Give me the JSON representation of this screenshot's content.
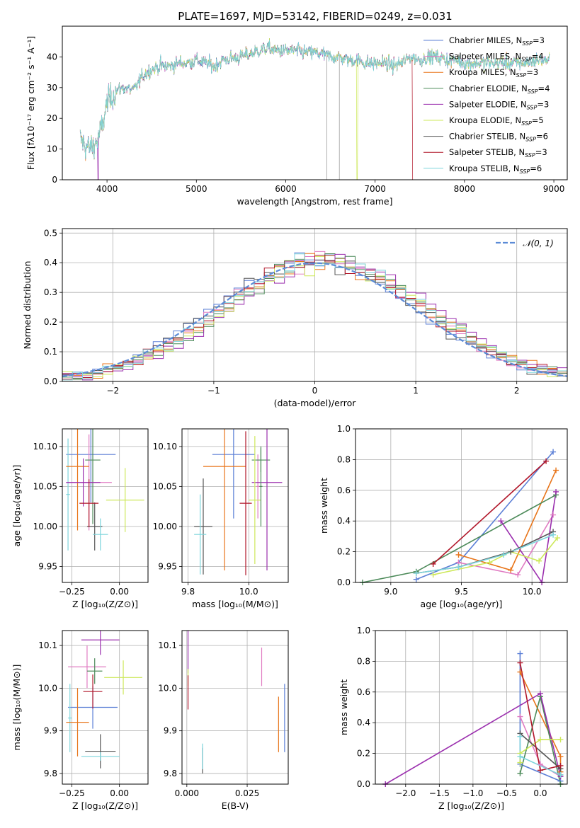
{
  "figure": {
    "title": "PLATE=1697, MJD=53142, FIBERID=0249, z=0.031"
  },
  "colors": {
    "Chabrier MILES": "#5b7fd6",
    "Salpeter MILES": "#e07bc2",
    "Kroupa MILES": "#e8751a",
    "Chabrier ELODIE": "#4c8a59",
    "Salpeter ELODIE": "#9b2fae",
    "Kroupa ELODIE": "#cde85a",
    "Chabrier STELIB": "#555555",
    "Salpeter STELIB": "#b2182b",
    "Kroupa STELIB": "#7dd5dc"
  },
  "chart_data": [
    {
      "id": "spectrum",
      "type": "line",
      "xlabel": "wavelength [Angstrom, rest frame]",
      "ylabel": "Flux [fλ10⁻¹⁷ erg cm⁻² s⁻¹ A⁻¹]",
      "xlim": [
        3500,
        9150
      ],
      "ylim": [
        0,
        50
      ],
      "xticks": [
        4000,
        5000,
        6000,
        7000,
        8000,
        9000
      ],
      "yticks": [
        0,
        10,
        20,
        30,
        40
      ],
      "legend_position": "upper-right",
      "legend": [
        {
          "model": "Chabrier MILES",
          "label": "Chabrier MILES, N",
          "sub": "SSP",
          "suffix": "=3"
        },
        {
          "model": "Salpeter MILES",
          "label": "Salpeter MILES, N",
          "sub": "SSP",
          "suffix": "=4"
        },
        {
          "model": "Kroupa MILES",
          "label": "Kroupa MILES, N",
          "sub": "SSP",
          "suffix": "=3"
        },
        {
          "model": "Chabrier ELODIE",
          "label": "Chabrier ELODIE, N",
          "sub": "SSP",
          "suffix": "=4"
        },
        {
          "model": "Salpeter ELODIE",
          "label": "Salpeter ELODIE, N",
          "sub": "SSP",
          "suffix": "=3"
        },
        {
          "model": "Kroupa ELODIE",
          "label": "Kroupa ELODIE, N",
          "sub": "SSP",
          "suffix": "=5"
        },
        {
          "model": "Chabrier STELIB",
          "label": "Chabrier STELIB, N",
          "sub": "SSP",
          "suffix": "=6"
        },
        {
          "model": "Salpeter STELIB",
          "label": "Salpeter STELIB, N",
          "sub": "SSP",
          "suffix": "=3"
        },
        {
          "model": "Kroupa STELIB",
          "label": "Kroupa STELIB, N",
          "sub": "SSP",
          "suffix": "=6"
        }
      ],
      "continuum_points": [
        [
          3700,
          13
        ],
        [
          3800,
          10
        ],
        [
          3900,
          13
        ],
        [
          3950,
          18
        ],
        [
          4000,
          25
        ],
        [
          4100,
          29
        ],
        [
          4200,
          30
        ],
        [
          4300,
          29
        ],
        [
          4400,
          34
        ],
        [
          4500,
          36
        ],
        [
          4600,
          37
        ],
        [
          4700,
          37
        ],
        [
          4800,
          38
        ],
        [
          4900,
          38
        ],
        [
          5000,
          39
        ],
        [
          5100,
          38
        ],
        [
          5200,
          37
        ],
        [
          5300,
          39
        ],
        [
          5400,
          39.5
        ],
        [
          5500,
          40
        ],
        [
          5600,
          41
        ],
        [
          5700,
          42
        ],
        [
          5800,
          43
        ],
        [
          5900,
          42
        ],
        [
          6000,
          42
        ],
        [
          6100,
          42
        ],
        [
          6200,
          41.5
        ],
        [
          6300,
          41.5
        ],
        [
          6400,
          41
        ],
        [
          6500,
          40
        ],
        [
          6600,
          40
        ],
        [
          6700,
          39
        ],
        [
          6800,
          39
        ],
        [
          6900,
          38
        ],
        [
          7000,
          38
        ],
        [
          7100,
          38
        ],
        [
          7200,
          37
        ],
        [
          7300,
          38
        ],
        [
          7400,
          40
        ],
        [
          7500,
          39
        ],
        [
          7600,
          40
        ],
        [
          7700,
          40
        ],
        [
          7800,
          39
        ],
        [
          7900,
          39
        ],
        [
          8000,
          38
        ],
        [
          8100,
          38
        ],
        [
          8200,
          38
        ],
        [
          8300,
          38
        ],
        [
          8400,
          38
        ],
        [
          8500,
          38
        ],
        [
          8600,
          38
        ],
        [
          8700,
          38
        ],
        [
          8800,
          39
        ],
        [
          8900,
          39
        ]
      ],
      "spectrum_xmin": 3700,
      "spectrum_xmax": 8950,
      "gray_lines_x": [
        6460,
        6600
      ],
      "dropouts": [
        {
          "model": "Salpeter ELODIE",
          "x": 3900
        },
        {
          "model": "Kroupa ELODIE",
          "x": 6800
        },
        {
          "model": "Salpeter STELIB",
          "x": 7420
        }
      ]
    },
    {
      "id": "residuals",
      "type": "histogram",
      "xlabel": "(data-model)/error",
      "ylabel": "Normed distribution",
      "xlim": [
        -2.5,
        2.5
      ],
      "ylim": [
        0,
        0.515
      ],
      "xticks": [
        -2,
        -1,
        0,
        1,
        2
      ],
      "yticks": [
        0.0,
        0.1,
        0.2,
        0.3,
        0.4,
        0.5
      ],
      "bin_width": 0.1,
      "legend_label": "𝒩(0, 1)",
      "legend_position": "upper-right",
      "series": [
        "Chabrier MILES",
        "Salpeter MILES",
        "Kroupa MILES",
        "Chabrier ELODIE",
        "Salpeter ELODIE",
        "Kroupa ELODIE",
        "Chabrier STELIB",
        "Salpeter STELIB",
        "Kroupa STELIB"
      ]
    },
    {
      "id": "age_vs_Z",
      "type": "errorbar",
      "xlabel": "Z [log₁₀(Z/Z⊙)]",
      "ylabel": "age  [log₁₀(age/yr)]",
      "xlim": [
        -0.3,
        0.15
      ],
      "ylim": [
        9.93,
        10.122
      ],
      "xticks": [
        -0.25,
        0.0
      ],
      "yticks": [
        9.95,
        10.0,
        10.05,
        10.1
      ],
      "points": [
        {
          "model": "Chabrier MILES",
          "x": -0.15,
          "xerr": 0.13,
          "y": 10.09,
          "yerr": 0.06
        },
        {
          "model": "Kroupa STELIB",
          "x": -0.27,
          "xerr": 0.01,
          "y": 10.04,
          "yerr": 0.07
        },
        {
          "model": "Salpeter MILES",
          "x": -0.16,
          "xerr": 0.12,
          "y": 10.055,
          "yerr": 0.06
        },
        {
          "model": "Kroupa MILES",
          "x": -0.22,
          "xerr": 0.06,
          "y": 10.075,
          "yerr": 0.08
        },
        {
          "model": "Chabrier ELODIE",
          "x": -0.14,
          "xerr": 0.04,
          "y": 10.083,
          "yerr": 0.08
        },
        {
          "model": "Salpeter ELODIE",
          "x": -0.19,
          "xerr": 0.09,
          "y": 10.055,
          "yerr": 0.03
        },
        {
          "model": "Kroupa ELODIE",
          "x": 0.03,
          "xerr": 0.1,
          "y": 10.033,
          "yerr": 0.04
        },
        {
          "model": "Chabrier STELIB",
          "x": -0.13,
          "xerr": 0.04,
          "y": 10.0,
          "yerr": 0.03
        },
        {
          "model": "Salpeter STELIB",
          "x": -0.16,
          "xerr": 0.05,
          "y": 10.029,
          "yerr": 0.03
        },
        {
          "model": "Kroupa STELIB",
          "x": -0.1,
          "xerr": 0.04,
          "y": 9.99,
          "yerr": 0.02
        }
      ]
    },
    {
      "id": "age_vs_mass",
      "type": "errorbar",
      "xlabel": "mass [log₁₀(M/M⊙)]",
      "xlim": [
        9.78,
        10.13
      ],
      "ylim": [
        9.93,
        10.122
      ],
      "xticks": [
        9.8,
        10.0
      ],
      "yticks": [
        9.95,
        10.0,
        10.05,
        10.1
      ],
      "points": [
        {
          "model": "Chabrier MILES",
          "x": 9.95,
          "xerr": 0.07,
          "y": 10.09,
          "yerr": 0.08
        },
        {
          "model": "Salpeter MILES",
          "x": 10.03,
          "xerr": 0.005,
          "y": 10.05,
          "yerr": 0.04
        },
        {
          "model": "Kroupa MILES",
          "x": 9.92,
          "xerr": 0.07,
          "y": 10.075,
          "yerr": 0.13
        },
        {
          "model": "Chabrier ELODIE",
          "x": 10.04,
          "xerr": 0.03,
          "y": 10.083,
          "yerr": 0.015
        },
        {
          "model": "Salpeter ELODIE",
          "x": 10.06,
          "xerr": 0.05,
          "y": 10.055,
          "yerr": 0.11
        },
        {
          "model": "Kroupa ELODIE",
          "x": 10.02,
          "xerr": 0.02,
          "y": 10.033,
          "yerr": 0.08
        },
        {
          "model": "Chabrier STELIB",
          "x": 9.85,
          "xerr": 0.03,
          "y": 10.0,
          "yerr": 0.06
        },
        {
          "model": "Salpeter STELIB",
          "x": 9.99,
          "xerr": 0.02,
          "y": 10.029,
          "yerr": 0.09
        },
        {
          "model": "Kroupa STELIB",
          "x": 9.84,
          "xerr": 0.02,
          "y": 9.99,
          "yerr": 0.05
        },
        {
          "model": "Chabrier ELODIE",
          "x": 10.04,
          "xerr": 0.005,
          "y": 10.05,
          "yerr": 0.05
        }
      ]
    },
    {
      "id": "weight_vs_age",
      "type": "line",
      "xlabel": "age  [log₁₀(age/yr)]",
      "ylabel": "mass weight",
      "xlim": [
        8.75,
        10.25
      ],
      "ylim": [
        0,
        1.0
      ],
      "xticks": [
        9.0,
        9.5,
        10.0
      ],
      "yticks": [
        0.0,
        0.2,
        0.4,
        0.6,
        0.8,
        1.0
      ],
      "series": [
        {
          "model": "Chabrier MILES",
          "x": [
            9.18,
            9.48,
            10.15
          ],
          "y": [
            0.02,
            0.13,
            0.85
          ]
        },
        {
          "model": "Salpeter MILES",
          "x": [
            9.48,
            9.9,
            10.15
          ],
          "y": [
            0.13,
            0.05,
            0.44
          ]
        },
        {
          "model": "Kroupa MILES",
          "x": [
            9.48,
            9.85,
            10.17
          ],
          "y": [
            0.18,
            0.08,
            0.73
          ]
        },
        {
          "model": "Chabrier ELODIE",
          "x": [
            8.8,
            9.18,
            10.17
          ],
          "y": [
            0.0,
            0.07,
            0.57
          ]
        },
        {
          "model": "Salpeter ELODIE",
          "x": [
            9.78,
            10.07,
            10.17
          ],
          "y": [
            0.4,
            0.0,
            0.59
          ]
        },
        {
          "model": "Kroupa ELODIE",
          "x": [
            9.3,
            9.7,
            9.85,
            10.05,
            10.18
          ],
          "y": [
            0.05,
            0.13,
            0.2,
            0.14,
            0.29
          ]
        },
        {
          "model": "Chabrier STELIB",
          "x": [
            9.18,
            9.48,
            9.85,
            10.15
          ],
          "y": [
            0.06,
            0.1,
            0.2,
            0.33
          ]
        },
        {
          "model": "Salpeter STELIB",
          "x": [
            9.3,
            10.1
          ],
          "y": [
            0.12,
            0.79
          ]
        },
        {
          "model": "Kroupa STELIB",
          "x": [
            9.18,
            9.48,
            9.8,
            10.15
          ],
          "y": [
            0.06,
            0.1,
            0.18,
            0.31
          ]
        }
      ]
    },
    {
      "id": "mass_vs_Z",
      "type": "errorbar",
      "xlabel": "Z [log₁₀(Z/Z⊙)]",
      "ylabel": "mass [log₁₀(M/M⊙)]",
      "xlim": [
        -0.3,
        0.15
      ],
      "ylim": [
        9.775,
        10.135
      ],
      "xticks": [
        -0.25,
        0.0
      ],
      "yticks": [
        9.8,
        9.9,
        10.0,
        10.1
      ],
      "points": [
        {
          "model": "Chabrier MILES",
          "x": -0.14,
          "xerr": 0.13,
          "y": 9.955,
          "yerr": 0.05
        },
        {
          "model": "Kroupa STELIB",
          "x": -0.26,
          "xerr": 0.01,
          "y": 9.93,
          "yerr": 0.08
        },
        {
          "model": "Salpeter MILES",
          "x": -0.17,
          "xerr": 0.1,
          "y": 10.05,
          "yerr": 0.05
        },
        {
          "model": "Kroupa MILES",
          "x": -0.22,
          "xerr": 0.06,
          "y": 9.92,
          "yerr": 0.08
        },
        {
          "model": "Chabrier ELODIE",
          "x": -0.13,
          "xerr": 0.04,
          "y": 10.04,
          "yerr": 0.03
        },
        {
          "model": "Salpeter ELODIE",
          "x": -0.1,
          "xerr": 0.1,
          "y": 10.113,
          "yerr": 0.035
        },
        {
          "model": "Kroupa ELODIE",
          "x": 0.02,
          "xerr": 0.1,
          "y": 10.025,
          "yerr": 0.04
        },
        {
          "model": "Chabrier STELIB",
          "x": -0.1,
          "xerr": 0.08,
          "y": 9.852,
          "yerr": 0.04
        },
        {
          "model": "Salpeter STELIB",
          "x": -0.14,
          "xerr": 0.05,
          "y": 9.992,
          "yerr": 0.04
        },
        {
          "model": "Kroupa STELIB",
          "x": -0.1,
          "xerr": 0.1,
          "y": 9.84,
          "yerr": 0.01
        }
      ]
    },
    {
      "id": "mass_vs_EBV",
      "type": "errorbar",
      "xlabel": "E(B-V)",
      "xlim": [
        -0.002,
        0.042
      ],
      "ylim": [
        9.775,
        10.135
      ],
      "xticks": [
        0.0,
        0.025
      ],
      "yticks": [
        9.8,
        9.9,
        10.0,
        10.1
      ],
      "points": [
        {
          "model": "Salpeter ELODIE",
          "x": 0.0005,
          "xerr": 0,
          "y": 10.085,
          "yerr": 0.05
        },
        {
          "model": "Kroupa ELODIE",
          "x": 0.0005,
          "xerr": 0,
          "y": 10.025,
          "yerr": 0.02
        },
        {
          "model": "Salpeter STELIB",
          "x": 0.0005,
          "xerr": 0,
          "y": 9.99,
          "yerr": 0.04
        },
        {
          "model": "Chabrier STELIB",
          "x": 0.0065,
          "xerr": 0,
          "y": 9.83,
          "yerr": 0.03
        },
        {
          "model": "Kroupa STELIB",
          "x": 0.0065,
          "xerr": 0,
          "y": 9.84,
          "yerr": 0.03
        },
        {
          "model": "Salpeter MILES",
          "x": 0.031,
          "xerr": 0,
          "y": 10.05,
          "yerr": 0.045
        },
        {
          "model": "Kroupa MILES",
          "x": 0.038,
          "xerr": 0,
          "y": 9.915,
          "yerr": 0.065
        },
        {
          "model": "Chabrier MILES",
          "x": 0.0405,
          "xerr": 0,
          "y": 9.93,
          "yerr": 0.08
        }
      ]
    },
    {
      "id": "weight_vs_Z",
      "type": "line",
      "xlabel": "Z [log₁₀(Z/Z⊙)]",
      "ylabel": "mass weight",
      "xlim": [
        -2.45,
        0.4
      ],
      "ylim": [
        0,
        1.0
      ],
      "xticks": [
        -2.0,
        -1.5,
        -1.0,
        -0.5,
        0.0
      ],
      "yticks": [
        0.0,
        0.2,
        0.4,
        0.6,
        0.8,
        1.0
      ],
      "series": [
        {
          "model": "Chabrier MILES",
          "x": [
            -0.3,
            -0.3,
            0.3
          ],
          "y": [
            0.85,
            0.13,
            0.02
          ]
        },
        {
          "model": "Salpeter MILES",
          "x": [
            -0.3,
            0.0,
            0.3
          ],
          "y": [
            0.44,
            0.13,
            0.05
          ]
        },
        {
          "model": "Kroupa MILES",
          "x": [
            -0.3,
            0.3,
            0.3
          ],
          "y": [
            0.73,
            0.18,
            0.08
          ]
        },
        {
          "model": "Chabrier ELODIE",
          "x": [
            -0.3,
            0.0,
            0.3
          ],
          "y": [
            0.07,
            0.57,
            0.0
          ]
        },
        {
          "model": "Salpeter ELODIE",
          "x": [
            -2.3,
            0.0,
            0.3
          ],
          "y": [
            0.0,
            0.59,
            0.05
          ]
        },
        {
          "model": "Kroupa ELODIE",
          "x": [
            -0.3,
            -0.3,
            0.0,
            0.3
          ],
          "y": [
            0.14,
            0.2,
            0.29,
            0.29
          ]
        },
        {
          "model": "Chabrier STELIB",
          "x": [
            -0.3,
            0.3,
            0.3
          ],
          "y": [
            0.33,
            0.1,
            0.06
          ]
        },
        {
          "model": "Salpeter STELIB",
          "x": [
            -0.3,
            0.0,
            0.3
          ],
          "y": [
            0.79,
            0.09,
            0.12
          ]
        },
        {
          "model": "Kroupa STELIB",
          "x": [
            -0.3,
            -0.3,
            0.3
          ],
          "y": [
            0.31,
            0.18,
            0.06
          ]
        }
      ]
    }
  ]
}
